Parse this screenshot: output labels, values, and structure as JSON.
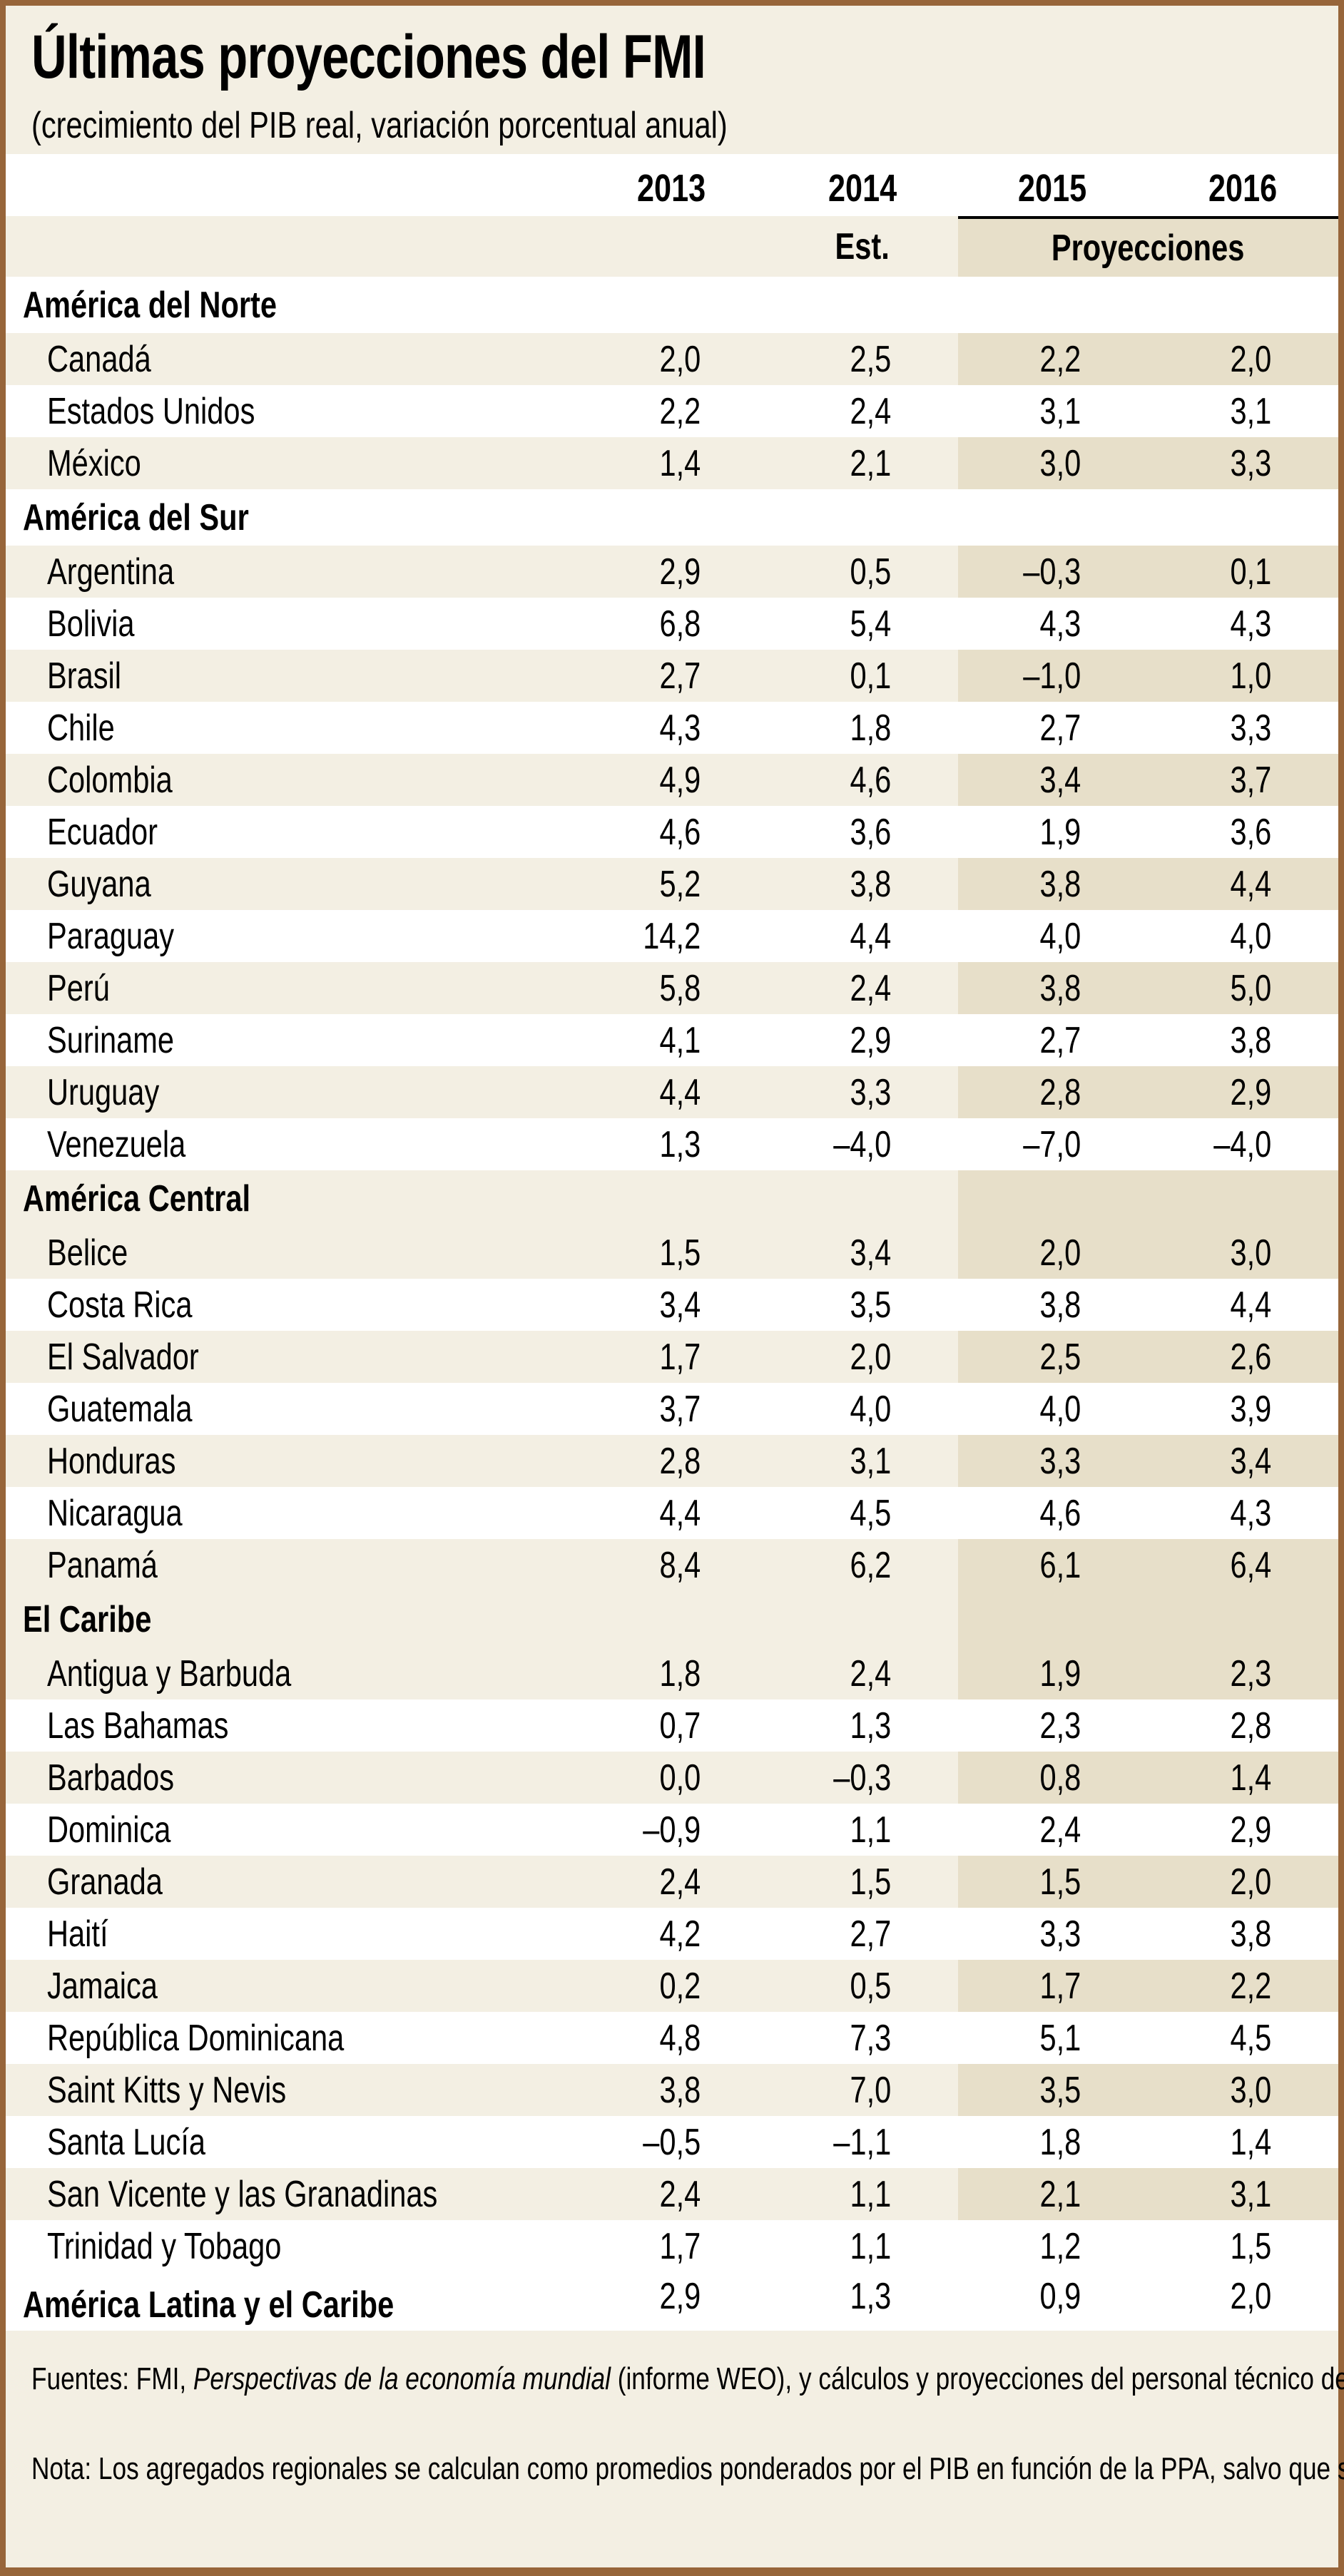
{
  "header": {
    "title": "Últimas proyecciones del FMI",
    "subtitle": "(crecimiento del PIB real, variación porcentual anual)"
  },
  "columns": {
    "years": [
      "2013",
      "2014",
      "2015",
      "2016"
    ],
    "estimate_label": "Est.",
    "projections_label": "Proyecciones"
  },
  "colors": {
    "border": "#97653A",
    "background": "#F3EFE3",
    "projection_shade": "#E7DFC9"
  },
  "regions": [
    {
      "name": "América del Norte",
      "rows": [
        {
          "country": "Canadá",
          "values": [
            "2,0",
            "2,5",
            "2,2",
            "2,0"
          ]
        },
        {
          "country": "Estados Unidos",
          "values": [
            "2,2",
            "2,4",
            "3,1",
            "3,1"
          ]
        },
        {
          "country": "México",
          "values": [
            "1,4",
            "2,1",
            "3,0",
            "3,3"
          ]
        }
      ]
    },
    {
      "name": "América del Sur",
      "rows": [
        {
          "country": "Argentina",
          "values": [
            "2,9",
            "0,5",
            "–0,3",
            "0,1"
          ]
        },
        {
          "country": "Bolivia",
          "values": [
            "6,8",
            "5,4",
            "4,3",
            "4,3"
          ]
        },
        {
          "country": "Brasil",
          "values": [
            "2,7",
            "0,1",
            "–1,0",
            "1,0"
          ]
        },
        {
          "country": "Chile",
          "values": [
            "4,3",
            "1,8",
            "2,7",
            "3,3"
          ]
        },
        {
          "country": "Colombia",
          "values": [
            "4,9",
            "4,6",
            "3,4",
            "3,7"
          ]
        },
        {
          "country": "Ecuador",
          "values": [
            "4,6",
            "3,6",
            "1,9",
            "3,6"
          ]
        },
        {
          "country": "Guyana",
          "values": [
            "5,2",
            "3,8",
            "3,8",
            "4,4"
          ]
        },
        {
          "country": "Paraguay",
          "values": [
            "14,2",
            "4,4",
            "4,0",
            "4,0"
          ]
        },
        {
          "country": "Perú",
          "values": [
            "5,8",
            "2,4",
            "3,8",
            "5,0"
          ]
        },
        {
          "country": "Suriname",
          "values": [
            "4,1",
            "2,9",
            "2,7",
            "3,8"
          ]
        },
        {
          "country": "Uruguay",
          "values": [
            "4,4",
            "3,3",
            "2,8",
            "2,9"
          ]
        },
        {
          "country": "Venezuela",
          "values": [
            "1,3",
            "–4,0",
            "–7,0",
            "–4,0"
          ]
        }
      ]
    },
    {
      "name": "América Central",
      "rows": [
        {
          "country": "Belice",
          "values": [
            "1,5",
            "3,4",
            "2,0",
            "3,0"
          ]
        },
        {
          "country": "Costa Rica",
          "values": [
            "3,4",
            "3,5",
            "3,8",
            "4,4"
          ]
        },
        {
          "country": "El Salvador",
          "values": [
            "1,7",
            "2,0",
            "2,5",
            "2,6"
          ]
        },
        {
          "country": "Guatemala",
          "values": [
            "3,7",
            "4,0",
            "4,0",
            "3,9"
          ]
        },
        {
          "country": "Honduras",
          "values": [
            "2,8",
            "3,1",
            "3,3",
            "3,4"
          ]
        },
        {
          "country": "Nicaragua",
          "values": [
            "4,4",
            "4,5",
            "4,6",
            "4,3"
          ]
        },
        {
          "country": "Panamá",
          "values": [
            "8,4",
            "6,2",
            "6,1",
            "6,4"
          ]
        }
      ]
    },
    {
      "name": "El Caribe",
      "rows": [
        {
          "country": "Antigua y Barbuda",
          "values": [
            "1,8",
            "2,4",
            "1,9",
            "2,3"
          ]
        },
        {
          "country": "Las Bahamas",
          "values": [
            "0,7",
            "1,3",
            "2,3",
            "2,8"
          ]
        },
        {
          "country": "Barbados",
          "values": [
            "0,0",
            "–0,3",
            "0,8",
            "1,4"
          ]
        },
        {
          "country": "Dominica",
          "values": [
            "–0,9",
            "1,1",
            "2,4",
            "2,9"
          ]
        },
        {
          "country": "Granada",
          "values": [
            "2,4",
            "1,5",
            "1,5",
            "2,0"
          ]
        },
        {
          "country": "Haití",
          "values": [
            "4,2",
            "2,7",
            "3,3",
            "3,8"
          ]
        },
        {
          "country": "Jamaica",
          "values": [
            "0,2",
            "0,5",
            "1,7",
            "2,2"
          ]
        },
        {
          "country": "República Dominicana",
          "values": [
            "4,8",
            "7,3",
            "5,1",
            "4,5"
          ]
        },
        {
          "country": "Saint Kitts y Nevis",
          "values": [
            "3,8",
            "7,0",
            "3,5",
            "3,0"
          ]
        },
        {
          "country": "Santa Lucía",
          "values": [
            "–0,5",
            "–1,1",
            "1,8",
            "1,4"
          ]
        },
        {
          "country": "San Vicente y las Granadinas",
          "values": [
            "2,4",
            "1,1",
            "2,1",
            "3,1"
          ]
        },
        {
          "country": "Trinidad y Tobago",
          "values": [
            "1,7",
            "1,1",
            "1,2",
            "1,5"
          ]
        }
      ]
    }
  ],
  "total": {
    "name": "América Latina y el Caribe",
    "values": [
      "2,9",
      "1,3",
      "0,9",
      "2,0"
    ]
  },
  "footer": {
    "sources_prefix": "Fuentes: FMI, ",
    "sources_italic": "Perspectivas de la economía mundial",
    "sources_suffix": " (informe WEO), y cálculos y proyecciones del personal técnico del FMI.",
    "note": "Nota: Los agregados regionales se calculan como promedios ponderados por el PIB en función de la PPA, salvo que se indique lo contrario."
  },
  "chart_data": {
    "type": "table",
    "title": "Últimas proyecciones del FMI",
    "subtitle": "(crecimiento del PIB real, variación porcentual anual)",
    "columns": [
      "2013",
      "2014 (Est.)",
      "2015 (Proyecciones)",
      "2016 (Proyecciones)"
    ],
    "rows": [
      {
        "region": "América del Norte",
        "country": "Canadá",
        "values": [
          2.0,
          2.5,
          2.2,
          2.0
        ]
      },
      {
        "region": "América del Norte",
        "country": "Estados Unidos",
        "values": [
          2.2,
          2.4,
          3.1,
          3.1
        ]
      },
      {
        "region": "América del Norte",
        "country": "México",
        "values": [
          1.4,
          2.1,
          3.0,
          3.3
        ]
      },
      {
        "region": "América del Sur",
        "country": "Argentina",
        "values": [
          2.9,
          0.5,
          -0.3,
          0.1
        ]
      },
      {
        "region": "América del Sur",
        "country": "Bolivia",
        "values": [
          6.8,
          5.4,
          4.3,
          4.3
        ]
      },
      {
        "region": "América del Sur",
        "country": "Brasil",
        "values": [
          2.7,
          0.1,
          -1.0,
          1.0
        ]
      },
      {
        "region": "América del Sur",
        "country": "Chile",
        "values": [
          4.3,
          1.8,
          2.7,
          3.3
        ]
      },
      {
        "region": "América del Sur",
        "country": "Colombia",
        "values": [
          4.9,
          4.6,
          3.4,
          3.7
        ]
      },
      {
        "region": "América del Sur",
        "country": "Ecuador",
        "values": [
          4.6,
          3.6,
          1.9,
          3.6
        ]
      },
      {
        "region": "América del Sur",
        "country": "Guyana",
        "values": [
          5.2,
          3.8,
          3.8,
          4.4
        ]
      },
      {
        "region": "América del Sur",
        "country": "Paraguay",
        "values": [
          14.2,
          4.4,
          4.0,
          4.0
        ]
      },
      {
        "region": "América del Sur",
        "country": "Perú",
        "values": [
          5.8,
          2.4,
          3.8,
          5.0
        ]
      },
      {
        "region": "América del Sur",
        "country": "Suriname",
        "values": [
          4.1,
          2.9,
          2.7,
          3.8
        ]
      },
      {
        "region": "América del Sur",
        "country": "Uruguay",
        "values": [
          4.4,
          3.3,
          2.8,
          2.9
        ]
      },
      {
        "region": "América del Sur",
        "country": "Venezuela",
        "values": [
          1.3,
          -4.0,
          -7.0,
          -4.0
        ]
      },
      {
        "region": "América Central",
        "country": "Belice",
        "values": [
          1.5,
          3.4,
          2.0,
          3.0
        ]
      },
      {
        "region": "América Central",
        "country": "Costa Rica",
        "values": [
          3.4,
          3.5,
          3.8,
          4.4
        ]
      },
      {
        "region": "América Central",
        "country": "El Salvador",
        "values": [
          1.7,
          2.0,
          2.5,
          2.6
        ]
      },
      {
        "region": "América Central",
        "country": "Guatemala",
        "values": [
          3.7,
          4.0,
          4.0,
          3.9
        ]
      },
      {
        "region": "América Central",
        "country": "Honduras",
        "values": [
          2.8,
          3.1,
          3.3,
          3.4
        ]
      },
      {
        "region": "América Central",
        "country": "Nicaragua",
        "values": [
          4.4,
          4.5,
          4.6,
          4.3
        ]
      },
      {
        "region": "América Central",
        "country": "Panamá",
        "values": [
          8.4,
          6.2,
          6.1,
          6.4
        ]
      },
      {
        "region": "El Caribe",
        "country": "Antigua y Barbuda",
        "values": [
          1.8,
          2.4,
          1.9,
          2.3
        ]
      },
      {
        "region": "El Caribe",
        "country": "Las Bahamas",
        "values": [
          0.7,
          1.3,
          2.3,
          2.8
        ]
      },
      {
        "region": "El Caribe",
        "country": "Barbados",
        "values": [
          0.0,
          -0.3,
          0.8,
          1.4
        ]
      },
      {
        "region": "El Caribe",
        "country": "Dominica",
        "values": [
          -0.9,
          1.1,
          2.4,
          2.9
        ]
      },
      {
        "region": "El Caribe",
        "country": "Granada",
        "values": [
          2.4,
          1.5,
          1.5,
          2.0
        ]
      },
      {
        "region": "El Caribe",
        "country": "Haití",
        "values": [
          4.2,
          2.7,
          3.3,
          3.8
        ]
      },
      {
        "region": "El Caribe",
        "country": "Jamaica",
        "values": [
          0.2,
          0.5,
          1.7,
          2.2
        ]
      },
      {
        "region": "El Caribe",
        "country": "República Dominicana",
        "values": [
          4.8,
          7.3,
          5.1,
          4.5
        ]
      },
      {
        "region": "El Caribe",
        "country": "Saint Kitts y Nevis",
        "values": [
          3.8,
          7.0,
          3.5,
          3.0
        ]
      },
      {
        "region": "El Caribe",
        "country": "Santa Lucía",
        "values": [
          -0.5,
          -1.1,
          1.8,
          1.4
        ]
      },
      {
        "region": "El Caribe",
        "country": "San Vicente y las Granadinas",
        "values": [
          2.4,
          1.1,
          2.1,
          3.1
        ]
      },
      {
        "region": "El Caribe",
        "country": "Trinidad y Tobago",
        "values": [
          1.7,
          1.1,
          1.2,
          1.5
        ]
      },
      {
        "region": "Total",
        "country": "América Latina y el Caribe",
        "values": [
          2.9,
          1.3,
          0.9,
          2.0
        ]
      }
    ]
  }
}
